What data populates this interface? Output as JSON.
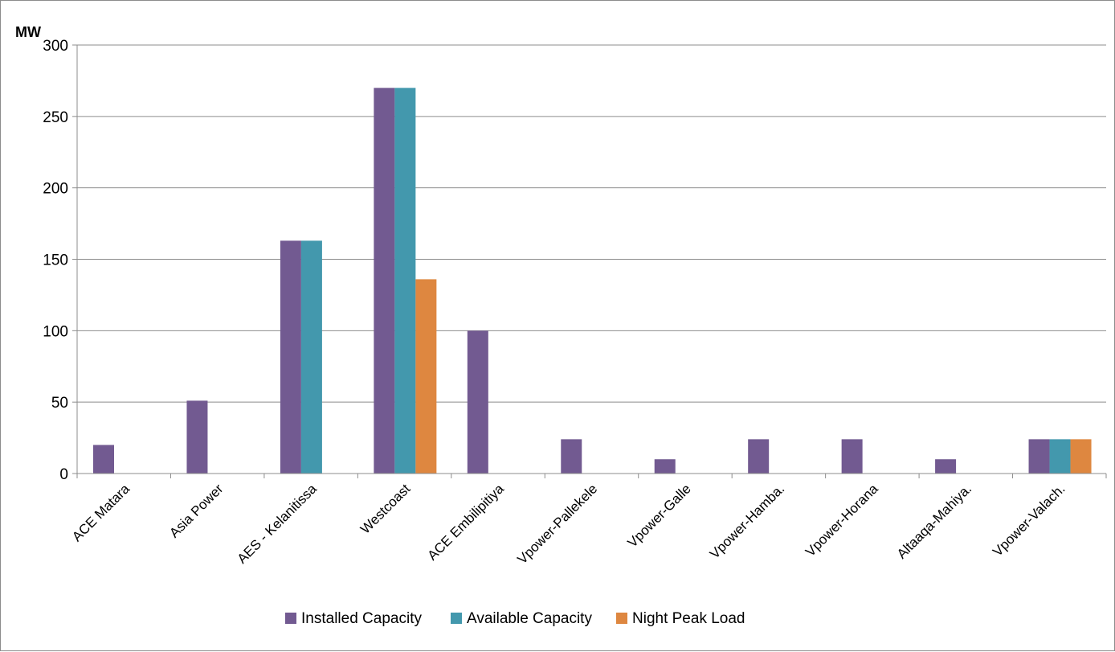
{
  "chart_data": {
    "type": "bar",
    "ylabel": "MW",
    "ylim": [
      0,
      300
    ],
    "yticks": [
      0,
      50,
      100,
      150,
      200,
      250,
      300
    ],
    "grid": true,
    "legend": "bottom",
    "categories": [
      "ACE Matara",
      "Asia Power",
      "AES - Kelanitissa",
      "Westcoast",
      "ACE Embilipitiya",
      "Vpower-Pallekele",
      "Vpower-Galle",
      "Vpower-Hamba.",
      "Vpower-Horana",
      "Altaaqa-Mahiya.",
      "Vpower-Valach."
    ],
    "series": [
      {
        "name": "Installed Capacity",
        "color": "#725a91",
        "values": [
          20,
          51,
          163,
          270,
          100,
          24,
          10,
          24,
          24,
          10,
          24
        ]
      },
      {
        "name": "Available Capacity",
        "color": "#4398ad",
        "values": [
          0,
          0,
          163,
          270,
          0,
          0,
          0,
          0,
          0,
          0,
          24
        ]
      },
      {
        "name": "Night Peak Load",
        "color": "#de8740",
        "values": [
          0,
          0,
          0,
          136,
          0,
          0,
          0,
          0,
          0,
          0,
          24
        ]
      }
    ]
  }
}
